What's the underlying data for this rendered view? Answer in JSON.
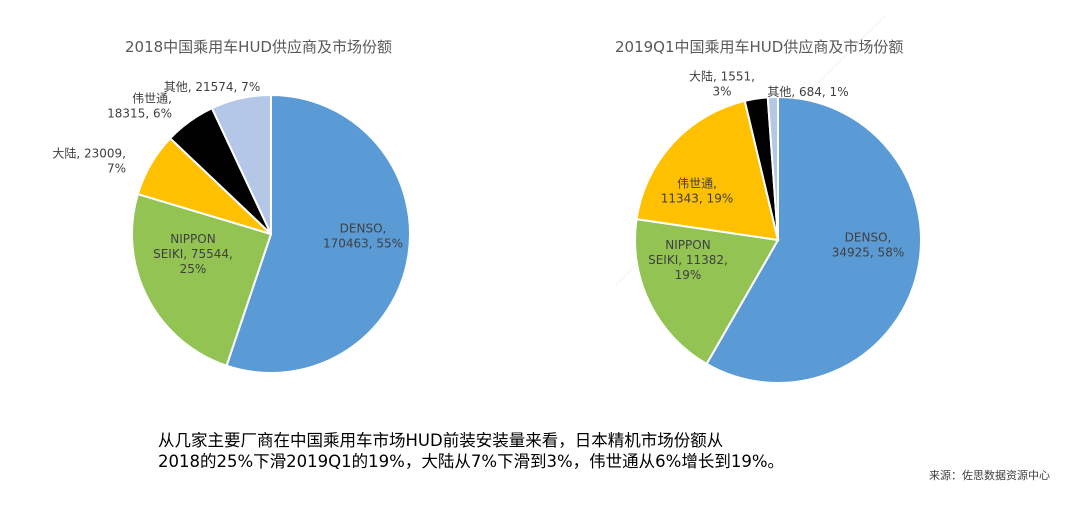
{
  "summary": {
    "line1": "从几家主要厂商在中国乘用车市场HUD前装安装量来看，日本精机市场份额从",
    "line2": "2018的25%下滑2019Q1的19%，大陆从7%下滑到3%，伟世通从6%增长到19%。"
  },
  "source": "来源：佐思数据资源中心",
  "chart_data": [
    {
      "type": "pie",
      "title": "2018中国乘用车HUD供应商及市场份额",
      "slices": [
        {
          "label_lines": [
            "DENSO,",
            "170463, 55%"
          ],
          "value": 170463,
          "percent": 55,
          "color": "#5b9bd5"
        },
        {
          "label_lines": [
            "NIPPON",
            "SEIKI, 75544,",
            "25%"
          ],
          "value": 75544,
          "percent": 25,
          "color": "#92c353"
        },
        {
          "label_lines": [
            "大陆, 23009,",
            "7%"
          ],
          "value": 23009,
          "percent": 7,
          "color": "#ffc000"
        },
        {
          "label_lines": [
            "伟世通,",
            "18315, 6%"
          ],
          "value": 18315,
          "percent": 6,
          "color": "#000000"
        },
        {
          "label_lines": [
            "其他, 21574, 7%"
          ],
          "value": 21574,
          "percent": 7,
          "color": "#b4c7e7"
        }
      ]
    },
    {
      "type": "pie",
      "title": "2019Q1中国乘用车HUD供应商及市场份额",
      "slices": [
        {
          "label_lines": [
            "DENSO,",
            "34925, 58%"
          ],
          "value": 34925,
          "percent": 58,
          "color": "#5b9bd5"
        },
        {
          "label_lines": [
            "NIPPON",
            "SEIKI, 11382,",
            "19%"
          ],
          "value": 11382,
          "percent": 19,
          "color": "#92c353"
        },
        {
          "label_lines": [
            "伟世通,",
            "11343, 19%"
          ],
          "value": 11343,
          "percent": 19,
          "color": "#ffc000"
        },
        {
          "label_lines": [
            "大陆, 1551,",
            "3%"
          ],
          "value": 1551,
          "percent": 3,
          "color": "#000000"
        },
        {
          "label_lines": [
            "其他, 684, 1%"
          ],
          "value": 684,
          "percent": 1,
          "color": "#b4c7e7"
        }
      ]
    }
  ]
}
